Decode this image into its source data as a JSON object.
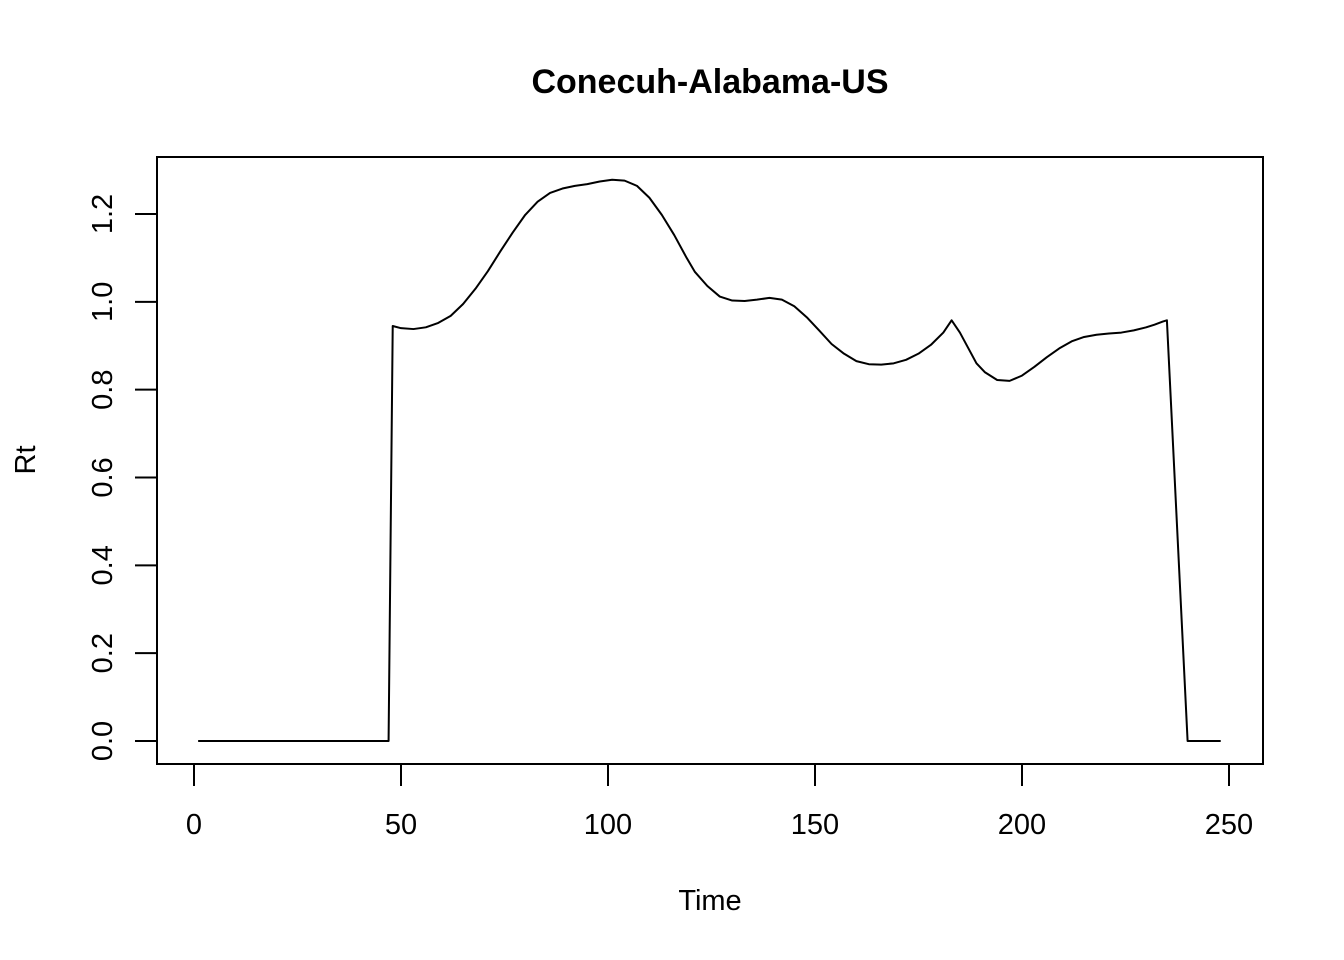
{
  "chart_data": {
    "type": "line",
    "title": "Conecuh-Alabama-US",
    "xlabel": "Time",
    "ylabel": "Rt",
    "xlim": [
      1,
      248
    ],
    "ylim": [
      0,
      1.28
    ],
    "x_ticks": [
      0,
      50,
      100,
      150,
      200,
      250
    ],
    "y_ticks": [
      0.0,
      0.2,
      0.4,
      0.6,
      0.8,
      1.0,
      1.2
    ],
    "x_tick_labels": [
      "0",
      "50",
      "100",
      "150",
      "200",
      "250"
    ],
    "y_tick_labels": [
      "0.0",
      "0.2",
      "0.4",
      "0.6",
      "0.8",
      "1.0",
      "1.2"
    ],
    "grid": false,
    "legend": "none",
    "line_color": "#000000",
    "series": [
      {
        "x": [
          1,
          10,
          20,
          30,
          40,
          47,
          48,
          50,
          53,
          56,
          59,
          62,
          65,
          68,
          71,
          74,
          77,
          80,
          83,
          86,
          89,
          92,
          95,
          98,
          101,
          104,
          107,
          110,
          113,
          116,
          119,
          121,
          124,
          127,
          130,
          133,
          136,
          139,
          142,
          145,
          148,
          151,
          154,
          157,
          160,
          163,
          166,
          169,
          172,
          175,
          178,
          181,
          183,
          185,
          187,
          189,
          191,
          194,
          197,
          200,
          203,
          206,
          209,
          212,
          215,
          218,
          221,
          224,
          227,
          230,
          232,
          234,
          235,
          240,
          248
        ],
        "y": [
          0,
          0,
          0,
          0,
          0,
          0,
          0.945,
          0.94,
          0.938,
          0.942,
          0.952,
          0.968,
          0.995,
          1.03,
          1.07,
          1.115,
          1.158,
          1.198,
          1.228,
          1.248,
          1.258,
          1.264,
          1.268,
          1.274,
          1.278,
          1.276,
          1.264,
          1.237,
          1.198,
          1.152,
          1.1,
          1.068,
          1.036,
          1.012,
          1.003,
          1.002,
          1.005,
          1.009,
          1.005,
          0.99,
          0.965,
          0.935,
          0.904,
          0.882,
          0.865,
          0.858,
          0.857,
          0.86,
          0.868,
          0.882,
          0.902,
          0.93,
          0.958,
          0.93,
          0.895,
          0.86,
          0.84,
          0.822,
          0.82,
          0.832,
          0.852,
          0.874,
          0.894,
          0.91,
          0.92,
          0.925,
          0.928,
          0.93,
          0.935,
          0.942,
          0.948,
          0.955,
          0.958,
          0,
          0
        ]
      }
    ]
  }
}
